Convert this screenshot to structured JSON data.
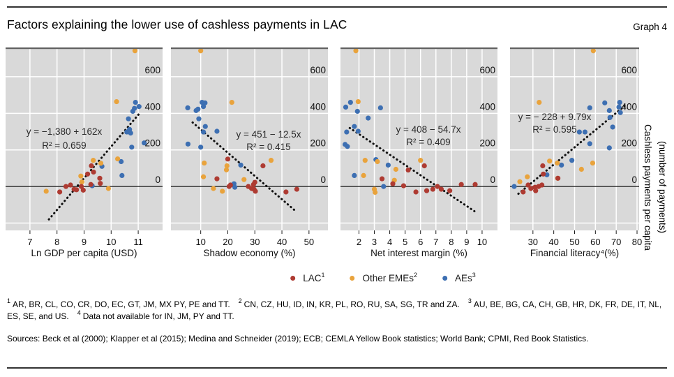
{
  "header": {
    "title": "Factors explaining the lower use of cashless payments in LAC",
    "graph_label": "Graph 4"
  },
  "colors": {
    "lac": "#ae3b32",
    "eme": "#e9a33c",
    "ae": "#3d6fb2",
    "plot_bg": "#d9d9d9",
    "grid": "#ffffff",
    "zero_line": "#1a1a1a",
    "trend": "#111111",
    "panel_top_border": "#5f5f5f"
  },
  "y_axis": {
    "ticks": [
      0,
      200,
      400,
      600
    ],
    "range": [
      -240,
      760
    ],
    "gridlines": [
      -200,
      200,
      400,
      600
    ],
    "title_line1": "Cashless payments per capita",
    "title_line2": "(number of payments)"
  },
  "legend": [
    {
      "label": "LAC",
      "sup": "1",
      "series": "lac"
    },
    {
      "label": "Other EMEs",
      "sup": "2",
      "series": "eme"
    },
    {
      "label": "AEs",
      "sup": "3",
      "series": "ae"
    }
  ],
  "chart_data": [
    {
      "type": "scatter",
      "xlabel": "Ln GDP per capita (USD)",
      "x_ticks": [
        7,
        8,
        9,
        10,
        11
      ],
      "x_range": [
        6.1,
        11.9
      ],
      "equation": "y = −1,380 + 162x",
      "r2": "R² =  0.659",
      "trend": {
        "x1": 7.7,
        "y1": -180,
        "x2": 11.05,
        "y2": 400
      },
      "series": {
        "lac": [
          [
            8.1,
            -30
          ],
          [
            8.33,
            0
          ],
          [
            8.5,
            8
          ],
          [
            8.63,
            -15
          ],
          [
            8.72,
            -18
          ],
          [
            8.9,
            0
          ],
          [
            8.97,
            -20
          ],
          [
            9.13,
            68
          ],
          [
            9.25,
            11
          ],
          [
            9.27,
            113
          ],
          [
            9.35,
            79
          ],
          [
            9.58,
            45
          ],
          [
            9.6,
            17
          ]
        ],
        "eme": [
          [
            7.6,
            -26
          ],
          [
            8.88,
            57
          ],
          [
            8.92,
            25
          ],
          [
            9.34,
            143
          ],
          [
            9.62,
            127
          ],
          [
            9.9,
            -11
          ],
          [
            10.2,
            464
          ],
          [
            10.24,
            151
          ],
          [
            10.88,
            742
          ]
        ],
        "ae": [
          [
            9.3,
            4
          ],
          [
            9.66,
            110
          ],
          [
            10.37,
            136
          ],
          [
            10.4,
            60
          ],
          [
            10.58,
            298
          ],
          [
            10.64,
            370
          ],
          [
            10.68,
            312
          ],
          [
            10.72,
            292
          ],
          [
            10.76,
            215
          ],
          [
            10.8,
            411
          ],
          [
            10.86,
            427
          ],
          [
            10.9,
            460
          ],
          [
            11.03,
            437
          ],
          [
            11.22,
            238
          ]
        ]
      }
    },
    {
      "type": "scatter",
      "xlabel": "Shadow economy (%)",
      "x_ticks": [
        10,
        20,
        30,
        40,
        50
      ],
      "x_range": [
        -1,
        57
      ],
      "equation": "y = 451 − 12.5x",
      "r2": "R² = 0.415",
      "trend": {
        "x1": 7,
        "y1": 350,
        "x2": 45.5,
        "y2": -140
      },
      "series": {
        "lac": [
          [
            16,
            42
          ],
          [
            20,
            150
          ],
          [
            20.5,
            0
          ],
          [
            21,
            8
          ],
          [
            27.6,
            0
          ],
          [
            28.8,
            -11
          ],
          [
            29.5,
            11
          ],
          [
            29.7,
            -15
          ],
          [
            30,
            23
          ],
          [
            30.2,
            -26
          ],
          [
            33,
            113
          ],
          [
            41.5,
            -30
          ],
          [
            45.5,
            -15
          ]
        ],
        "eme": [
          [
            10,
            742
          ],
          [
            11,
            53
          ],
          [
            11.3,
            128
          ],
          [
            14.7,
            -11
          ],
          [
            18,
            -26
          ],
          [
            19.5,
            91
          ],
          [
            19.7,
            113
          ],
          [
            21.5,
            460
          ],
          [
            26,
            38
          ],
          [
            36,
            143
          ]
        ],
        "ae": [
          [
            5.2,
            430
          ],
          [
            8.3,
            415
          ],
          [
            9,
            423
          ],
          [
            10.5,
            460
          ],
          [
            11.6,
            457
          ],
          [
            11,
            437
          ],
          [
            9.3,
            370
          ],
          [
            11.7,
            328
          ],
          [
            11,
            298
          ],
          [
            16,
            302
          ],
          [
            5.3,
            232
          ],
          [
            10,
            215
          ],
          [
            24.8,
            117
          ],
          [
            22.3,
            15
          ],
          [
            22.6,
            -4
          ]
        ]
      }
    },
    {
      "type": "scatter",
      "xlabel": "Net interest margin (%)",
      "x_ticks": [
        2,
        3,
        4,
        5,
        6,
        7,
        8,
        9,
        10
      ],
      "x_range": [
        0.8,
        11.0
      ],
      "equation": "y = 408 − 54.7x",
      "r2": "R² = 0.409",
      "trend": {
        "x1": 1.4,
        "y1": 320,
        "x2": 9.5,
        "y2": -135
      },
      "series": {
        "lac": [
          [
            3.5,
            42
          ],
          [
            4.2,
            15
          ],
          [
            4.9,
            4
          ],
          [
            5.2,
            90
          ],
          [
            5.7,
            -30
          ],
          [
            6.25,
            113
          ],
          [
            6.4,
            -23
          ],
          [
            6.8,
            -15
          ],
          [
            7.1,
            0
          ],
          [
            7.35,
            -15
          ],
          [
            7.9,
            -23
          ],
          [
            8.65,
            11
          ],
          [
            9.55,
            11
          ]
        ],
        "eme": [
          [
            1.8,
            742
          ],
          [
            1.95,
            464
          ],
          [
            2.3,
            60
          ],
          [
            2.4,
            143
          ],
          [
            3,
            -15
          ],
          [
            3.05,
            -32
          ],
          [
            3.2,
            136
          ],
          [
            4.3,
            34
          ],
          [
            4.4,
            94
          ],
          [
            6,
            143
          ]
        ],
        "ae": [
          [
            1.1,
            230
          ],
          [
            1.14,
            434
          ],
          [
            1.2,
            298
          ],
          [
            1.25,
            219
          ],
          [
            1.45,
            460
          ],
          [
            1.7,
            328
          ],
          [
            1.7,
            60
          ],
          [
            1.9,
            411
          ],
          [
            1.95,
            302
          ],
          [
            2.6,
            374
          ],
          [
            3.1,
            147
          ],
          [
            3.4,
            430
          ],
          [
            3.6,
            0
          ],
          [
            3.9,
            117
          ]
        ]
      }
    },
    {
      "type": "scatter",
      "xlabel": "Financial literacy⁴(%)",
      "x_ticks": [
        30,
        40,
        50,
        60,
        70,
        80
      ],
      "x_range": [
        19,
        81
      ],
      "equation": "y = − 228 + 9.79x",
      "r2": "R² = 0.595",
      "trend": {
        "x1": 23,
        "y1": -40,
        "x2": 74,
        "y2": 440
      },
      "series": {
        "lac": [
          [
            25.3,
            -30
          ],
          [
            27.7,
            8
          ],
          [
            29,
            -11
          ],
          [
            31,
            -4
          ],
          [
            31.3,
            -23
          ],
          [
            32.7,
            0
          ],
          [
            34.3,
            8
          ],
          [
            34.7,
            113
          ],
          [
            35,
            68
          ],
          [
            42,
            45
          ]
        ],
        "eme": [
          [
            23.7,
            26
          ],
          [
            27.3,
            53
          ],
          [
            33,
            460
          ],
          [
            38,
            139
          ],
          [
            41.7,
            128
          ],
          [
            41.9,
            45
          ],
          [
            53.3,
            94
          ],
          [
            58.7,
            128
          ],
          [
            59,
            742
          ]
        ],
        "ae": [
          [
            21,
            0
          ],
          [
            36.7,
            64
          ],
          [
            43.7,
            117
          ],
          [
            48.7,
            143
          ],
          [
            52.3,
            298
          ],
          [
            55,
            298
          ],
          [
            57.3,
            234
          ],
          [
            57.3,
            430
          ],
          [
            64.5,
            457
          ],
          [
            66.7,
            211
          ],
          [
            66.7,
            415
          ],
          [
            67,
            377
          ],
          [
            68.3,
            325
          ],
          [
            71.3,
            434
          ],
          [
            71.7,
            460
          ],
          [
            72,
            404
          ]
        ]
      }
    }
  ],
  "footnotes": {
    "items": [
      {
        "marker": "1",
        "text": "AR, BR, CL, CO, CR, DO, EC, GT, JM, MX PY, PE and TT."
      },
      {
        "marker": "2",
        "text": "CN, CZ, HU, ID, IN, KR, PL, RO, RU, SA, SG, TR and ZA."
      },
      {
        "marker": "3",
        "text": "AU, BE, BG, CA, CH, GB, HR, DK, FR, DE, IT, NL, ES, SE, and US."
      },
      {
        "marker": "4",
        "text": "Data not available for IN, JM, PY and TT."
      }
    ]
  },
  "sources": {
    "text": "Sources: Beck et al (2000); Klapper et al (2015); Medina and Schneider (2019); ECB; CEMLA Yellow Book statistics; World Bank; CPMI, Red Book Statistics."
  }
}
